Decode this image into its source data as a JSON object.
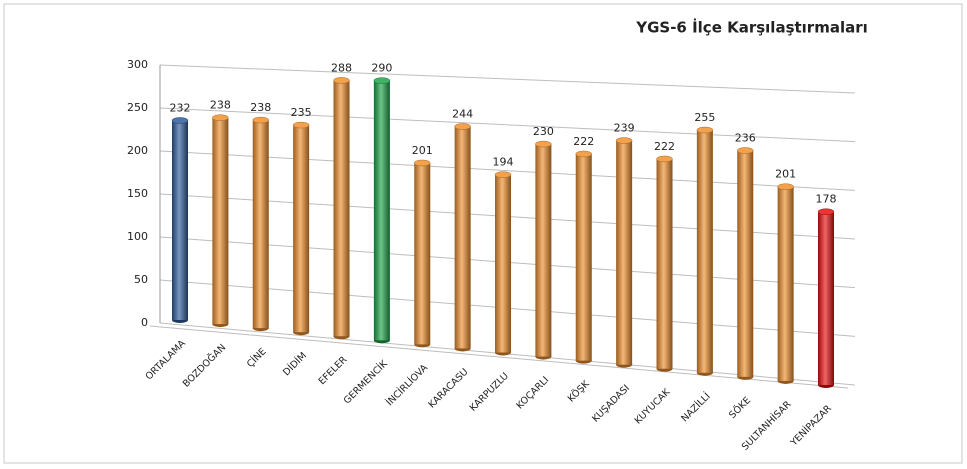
{
  "chart_data": {
    "type": "bar3d",
    "title": "YGS-6 İlçe Karşılaştırmaları",
    "categories": [
      "ORTALAMA",
      "BOZDOĞAN",
      "ÇİNE",
      "DİDİM",
      "EFELER",
      "GERMENCİK",
      "İNCİRLİOVA",
      "KARACASU",
      "KARPUZLU",
      "KOÇARLI",
      "KÖŞK",
      "KUŞADASI",
      "KUYUCAK",
      "NAZİLLİ",
      "SÖKE",
      "SULTANHİSAR",
      "YENİPAZAR"
    ],
    "values": [
      232,
      238,
      238,
      235,
      288,
      290,
      201,
      244,
      194,
      230,
      222,
      239,
      222,
      255,
      236,
      201,
      178
    ],
    "colors": [
      "#2f5d9c",
      "#f0902e",
      "#f0902e",
      "#f0902e",
      "#f0902e",
      "#1ea64a",
      "#f0902e",
      "#f0902e",
      "#f0902e",
      "#f0902e",
      "#f0902e",
      "#f0902e",
      "#f0902e",
      "#f0902e",
      "#f0902e",
      "#f0902e",
      "#e81010"
    ],
    "ylim": [
      0,
      300
    ],
    "yticks": [
      0,
      50,
      100,
      150,
      200,
      250,
      300
    ],
    "grid": true
  }
}
